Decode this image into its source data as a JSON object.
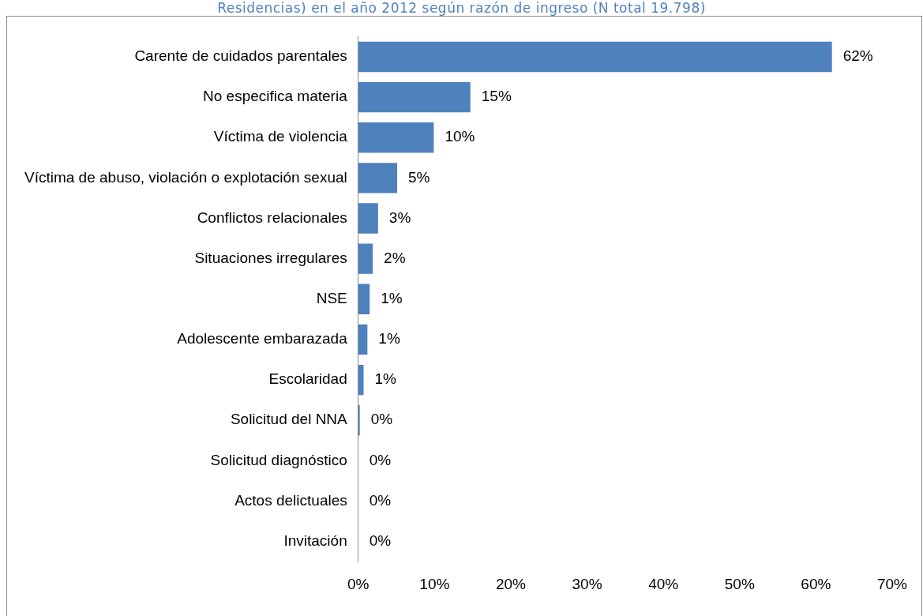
{
  "chart_data": {
    "type": "bar",
    "orientation": "horizontal",
    "title": "Residencias) en el año 2012 según razón de ingreso (N total 19.798)",
    "categories": [
      "Carente de cuidados parentales",
      "No especifica materia",
      "Víctima de violencia",
      "Víctima de abuso, violación o explotación sexual",
      "Conflictos relacionales",
      "Situaciones irregulares",
      "NSE",
      "Adolescente embarazada",
      "Escolaridad",
      "Solicitud del NNA",
      "Solicitud diagnóstico",
      "Actos delictuales",
      "Invitación"
    ],
    "values": [
      62.1,
      14.7,
      9.9,
      5.1,
      2.6,
      1.9,
      1.5,
      1.2,
      0.7,
      0.2,
      0,
      0,
      0
    ],
    "value_labels": [
      "62%",
      "15%",
      "10%",
      "5%",
      "3%",
      "2%",
      "1%",
      "1%",
      "1%",
      "0%",
      "0%",
      "0%",
      "0%"
    ],
    "color": "#4f81bd",
    "xlim": [
      0,
      70
    ],
    "xticks": [
      {
        "value": 0,
        "label": "0%"
      },
      {
        "value": 10,
        "label": "10%"
      },
      {
        "value": 20,
        "label": "20%"
      },
      {
        "value": 30,
        "label": "30%"
      },
      {
        "value": 40,
        "label": "40%"
      },
      {
        "value": 50,
        "label": "50%"
      },
      {
        "value": 60,
        "label": "60%"
      },
      {
        "value": 70,
        "label": "70%"
      }
    ],
    "grid": false,
    "legend": false
  }
}
